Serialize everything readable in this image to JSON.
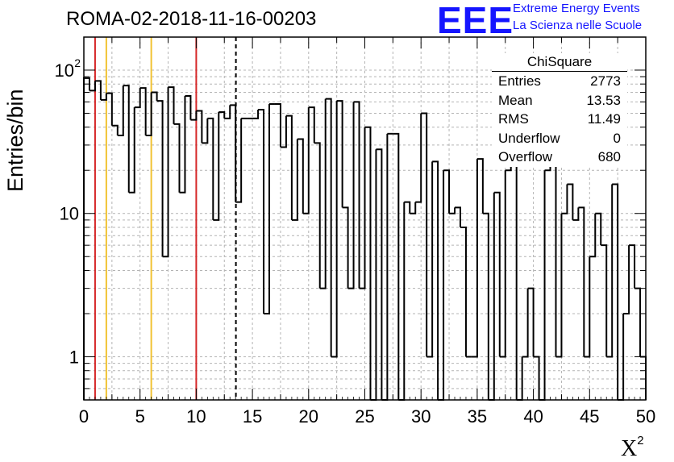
{
  "header": {
    "title": "ROMA-02-2018-11-16-00203",
    "logo_text": "EEE",
    "logo_line1": "Extreme Energy Events",
    "logo_line2": "La Scienza nelle Scuole"
  },
  "stats_box": {
    "title": "ChiSquare",
    "rows": [
      {
        "label": "Entries",
        "value": "2773"
      },
      {
        "label": "Mean",
        "value": "13.53"
      },
      {
        "label": "RMS",
        "value": "11.49"
      },
      {
        "label": "Underflow",
        "value": "0"
      },
      {
        "label": "Overflow",
        "value": "680"
      }
    ]
  },
  "chart_data": {
    "type": "histogram",
    "title": "ROMA-02-2018-11-16-00203",
    "xlabel": "X",
    "xlabel_superscript": "2",
    "ylabel": "Entries/bin",
    "xlim": [
      0,
      50
    ],
    "ylim": [
      0.5,
      170
    ],
    "yscale": "log",
    "bin_width": 0.5,
    "x_ticks": [
      "0",
      "5",
      "10",
      "15",
      "20",
      "25",
      "30",
      "35",
      "40",
      "45",
      "50"
    ],
    "y_ticks": [
      {
        "value": 1,
        "label": "1"
      },
      {
        "value": 10,
        "label": "10"
      },
      {
        "value": 100,
        "label": "10",
        "sup": "2"
      }
    ],
    "grid": true,
    "values": [
      88,
      72,
      84,
      62,
      69,
      41,
      35,
      78,
      14,
      55,
      75,
      35,
      70,
      61,
      5,
      76,
      42,
      14,
      66,
      45,
      52,
      31,
      46,
      9,
      51,
      46,
      57,
      12,
      46,
      46,
      46,
      53,
      2,
      58,
      58,
      29,
      48,
      9,
      33,
      10,
      55,
      31,
      3,
      63,
      1,
      61,
      11,
      3,
      60,
      3,
      40,
      0.5,
      28,
      0.5,
      36,
      36,
      0.5,
      12,
      10,
      12,
      50,
      1,
      23,
      0.5,
      20,
      10,
      11,
      8,
      1,
      1,
      24,
      10,
      0.5,
      14,
      1,
      20,
      22,
      0.5,
      1,
      3,
      1,
      0.5,
      20,
      23,
      1,
      10,
      16,
      9,
      11,
      1,
      5,
      10,
      6,
      1,
      16,
      0.5,
      2,
      6,
      3,
      1
    ],
    "vertical_lines": [
      {
        "x": 1,
        "color": "#d62728",
        "style": "solid"
      },
      {
        "x": 2,
        "color": "#f1c232",
        "style": "solid"
      },
      {
        "x": 6,
        "color": "#f1c232",
        "style": "solid"
      },
      {
        "x": 10,
        "color": "#d62728",
        "style": "solid"
      },
      {
        "x": 13.53,
        "color": "#000000",
        "style": "dashed"
      }
    ],
    "colors": {
      "histogram": "#000000",
      "grid": "#b4b4b4",
      "logo": "#1515ff"
    }
  }
}
